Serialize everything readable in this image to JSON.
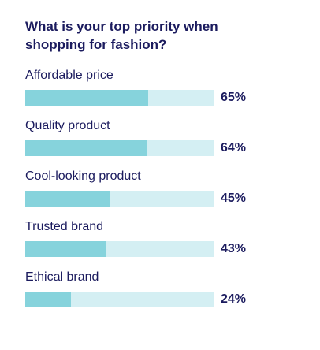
{
  "title": "What is your top priority when shopping for fashion?",
  "colors": {
    "text": "#1b1b5e",
    "bar_fill": "#86d3dc",
    "bar_track": "#d4eff3"
  },
  "chart_data": {
    "type": "bar",
    "orientation": "horizontal",
    "title": "What is your top priority when shopping for fashion?",
    "categories": [
      "Affordable price",
      "Quality product",
      "Cool-looking product",
      "Trusted brand",
      "Ethical brand"
    ],
    "values": [
      65,
      64,
      45,
      43,
      24
    ],
    "value_labels": [
      "65%",
      "64%",
      "45%",
      "43%",
      "24%"
    ],
    "xlim": [
      0,
      100
    ],
    "grid": false,
    "legend": "none"
  }
}
